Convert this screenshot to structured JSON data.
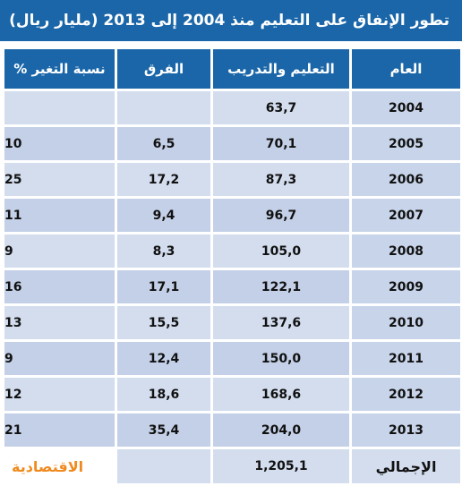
{
  "title": "تطور الإنفاق على التعليم منذ 2004  إلى 2013 (مليار ريال)",
  "headers": {
    "year": "العام",
    "spending": "التعليم والتدريب",
    "difference": "الفرق",
    "change_pct": "نسبة التغير %"
  },
  "rows": [
    {
      "year": "2004",
      "spending": "63,7",
      "difference": "",
      "change_pct": ""
    },
    {
      "year": "2005",
      "spending": "70,1",
      "difference": "6,5",
      "change_pct": "10"
    },
    {
      "year": "2006",
      "spending": "87,3",
      "difference": "17,2",
      "change_pct": "25"
    },
    {
      "year": "2007",
      "spending": "96,7",
      "difference": "9,4",
      "change_pct": "11"
    },
    {
      "year": "2008",
      "spending": "105,0",
      "difference": "8,3",
      "change_pct": "9"
    },
    {
      "year": "2009",
      "spending": "122,1",
      "difference": "17,1",
      "change_pct": "16"
    },
    {
      "year": "2010",
      "spending": "137,6",
      "difference": "15,5",
      "change_pct": "13"
    },
    {
      "year": "2011",
      "spending": "150,0",
      "difference": "12,4",
      "change_pct": "9"
    },
    {
      "year": "2012",
      "spending": "168,6",
      "difference": "18,6",
      "change_pct": "12"
    },
    {
      "year": "2013",
      "spending": "204,0",
      "difference": "35,4",
      "change_pct": "21"
    }
  ],
  "total": {
    "label": "الإجمالي",
    "spending": "1,205,1",
    "difference": ""
  },
  "brand": "الاقتصادية",
  "colors": {
    "header_blue": "#1a66a8",
    "cell_light": "#d3ddee",
    "cell_alt": "#c3d0e7",
    "brand_orange": "#f08a1f"
  }
}
